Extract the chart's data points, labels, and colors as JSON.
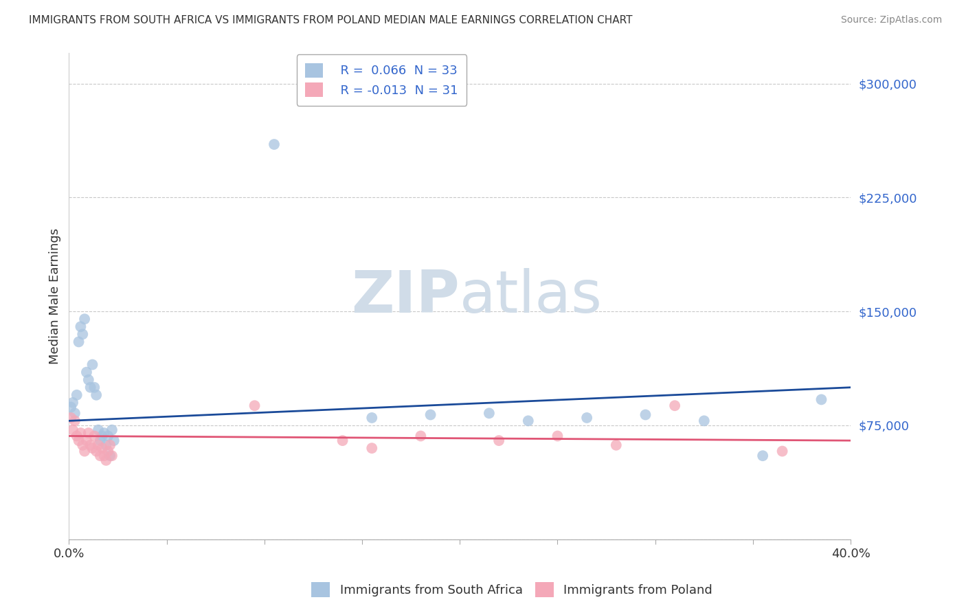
{
  "title": "IMMIGRANTS FROM SOUTH AFRICA VS IMMIGRANTS FROM POLAND MEDIAN MALE EARNINGS CORRELATION CHART",
  "source": "Source: ZipAtlas.com",
  "ylabel": "Median Male Earnings",
  "xlim": [
    0.0,
    0.4
  ],
  "ylim": [
    0,
    320000
  ],
  "yticks": [
    0,
    75000,
    150000,
    225000,
    300000
  ],
  "ytick_labels": [
    "",
    "$75,000",
    "$150,000",
    "$225,000",
    "$300,000"
  ],
  "xtick_left_label": "0.0%",
  "xtick_right_label": "40.0%",
  "grid_color": "#c8c8c8",
  "background_color": "#ffffff",
  "watermark_zip": "ZIP",
  "watermark_atlas": "atlas",
  "legend_r1": "R =  0.066  N = 33",
  "legend_r2": "R = -0.013  N = 31",
  "south_africa_color": "#a8c4e0",
  "poland_color": "#f4a8b8",
  "trend_south_africa_color": "#1a4a99",
  "trend_poland_color": "#e05575",
  "south_africa_scatter": [
    [
      0.001,
      87000
    ],
    [
      0.002,
      90000
    ],
    [
      0.003,
      83000
    ],
    [
      0.004,
      95000
    ],
    [
      0.005,
      130000
    ],
    [
      0.006,
      140000
    ],
    [
      0.007,
      135000
    ],
    [
      0.008,
      145000
    ],
    [
      0.009,
      110000
    ],
    [
      0.01,
      105000
    ],
    [
      0.011,
      100000
    ],
    [
      0.012,
      115000
    ],
    [
      0.013,
      100000
    ],
    [
      0.014,
      95000
    ],
    [
      0.015,
      72000
    ],
    [
      0.016,
      65000
    ],
    [
      0.017,
      68000
    ],
    [
      0.018,
      70000
    ],
    [
      0.019,
      62000
    ],
    [
      0.02,
      68000
    ],
    [
      0.021,
      55000
    ],
    [
      0.022,
      72000
    ],
    [
      0.023,
      65000
    ],
    [
      0.105,
      260000
    ],
    [
      0.155,
      80000
    ],
    [
      0.185,
      82000
    ],
    [
      0.215,
      83000
    ],
    [
      0.235,
      78000
    ],
    [
      0.265,
      80000
    ],
    [
      0.295,
      82000
    ],
    [
      0.325,
      78000
    ],
    [
      0.355,
      55000
    ],
    [
      0.385,
      92000
    ]
  ],
  "poland_scatter": [
    [
      0.001,
      80000
    ],
    [
      0.002,
      72000
    ],
    [
      0.003,
      78000
    ],
    [
      0.004,
      68000
    ],
    [
      0.005,
      65000
    ],
    [
      0.006,
      70000
    ],
    [
      0.007,
      62000
    ],
    [
      0.008,
      58000
    ],
    [
      0.009,
      65000
    ],
    [
      0.01,
      70000
    ],
    [
      0.011,
      62000
    ],
    [
      0.012,
      60000
    ],
    [
      0.013,
      68000
    ],
    [
      0.014,
      58000
    ],
    [
      0.015,
      62000
    ],
    [
      0.016,
      55000
    ],
    [
      0.017,
      60000
    ],
    [
      0.018,
      55000
    ],
    [
      0.019,
      52000
    ],
    [
      0.02,
      58000
    ],
    [
      0.021,
      62000
    ],
    [
      0.022,
      55000
    ],
    [
      0.095,
      88000
    ],
    [
      0.14,
      65000
    ],
    [
      0.155,
      60000
    ],
    [
      0.18,
      68000
    ],
    [
      0.22,
      65000
    ],
    [
      0.25,
      68000
    ],
    [
      0.28,
      62000
    ],
    [
      0.31,
      88000
    ],
    [
      0.365,
      58000
    ]
  ],
  "south_africa_marker_size": 130,
  "poland_marker_size": 130,
  "trend_sa_x0": 0.0,
  "trend_sa_y0": 78000,
  "trend_sa_x1": 0.4,
  "trend_sa_y1": 100000,
  "trend_pl_x0": 0.0,
  "trend_pl_y0": 68000,
  "trend_pl_x1": 0.4,
  "trend_pl_y1": 65000
}
